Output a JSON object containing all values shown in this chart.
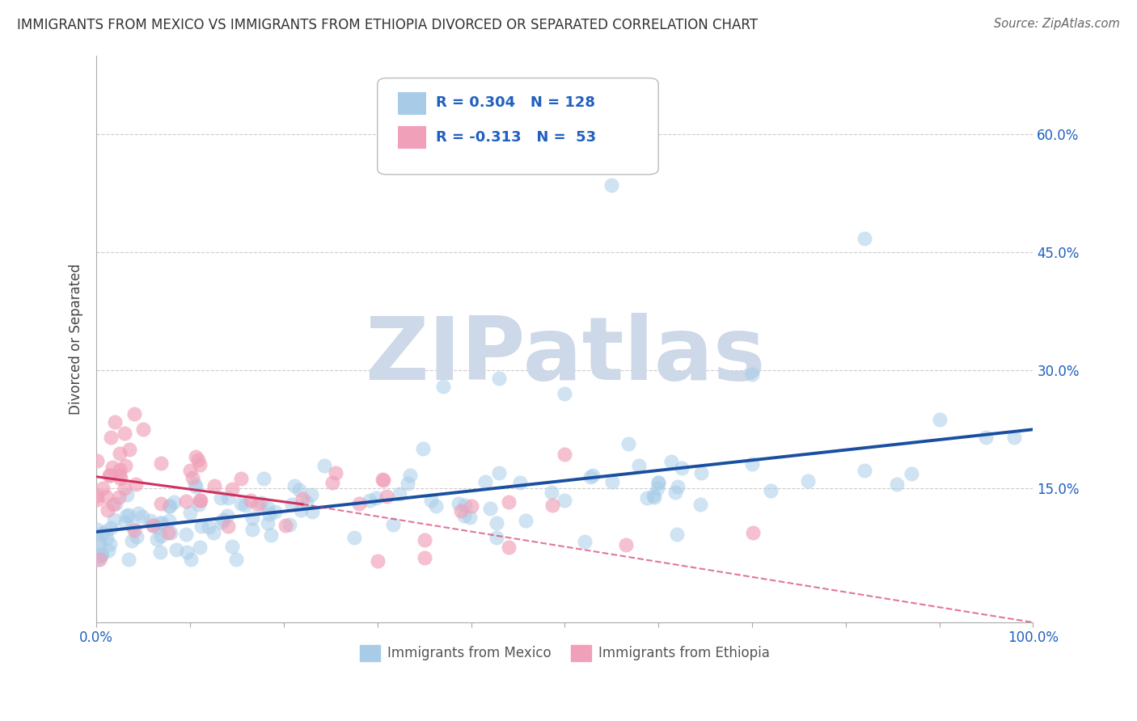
{
  "title": "IMMIGRANTS FROM MEXICO VS IMMIGRANTS FROM ETHIOPIA DIVORCED OR SEPARATED CORRELATION CHART",
  "source": "Source: ZipAtlas.com",
  "ylabel": "Divorced or Separated",
  "xlabel": "",
  "legend_bottom": [
    "Immigrants from Mexico",
    "Immigrants from Ethiopia"
  ],
  "r_mexico": 0.304,
  "n_mexico": 128,
  "r_ethiopia": -0.313,
  "n_ethiopia": 53,
  "xlim": [
    0.0,
    1.0
  ],
  "ylim": [
    -0.02,
    0.7
  ],
  "yticks": [
    0.0,
    0.15,
    0.3,
    0.45,
    0.6
  ],
  "ytick_labels_right": [
    "",
    "15.0%",
    "30.0%",
    "45.0%",
    "60.0%"
  ],
  "xticks": [
    0.0,
    1.0
  ],
  "xtick_labels": [
    "0.0%",
    "100.0%"
  ],
  "color_mexico": "#a8cce8",
  "color_ethiopia": "#f0a0b8",
  "line_color_mexico": "#1a4fa0",
  "line_color_ethiopia": "#d03060",
  "background_color": "#ffffff",
  "grid_color": "#cccccc",
  "watermark_color": "#cdd8e8",
  "blue_line_x0": 0.0,
  "blue_line_y0": 0.095,
  "blue_line_x1": 1.0,
  "blue_line_y1": 0.225,
  "pink_line_x0": 0.0,
  "pink_line_y0": 0.165,
  "pink_line_x1_solid": 0.22,
  "pink_line_y1_solid": 0.13,
  "pink_line_x1_dash": 1.0,
  "pink_line_y1_dash": -0.02
}
